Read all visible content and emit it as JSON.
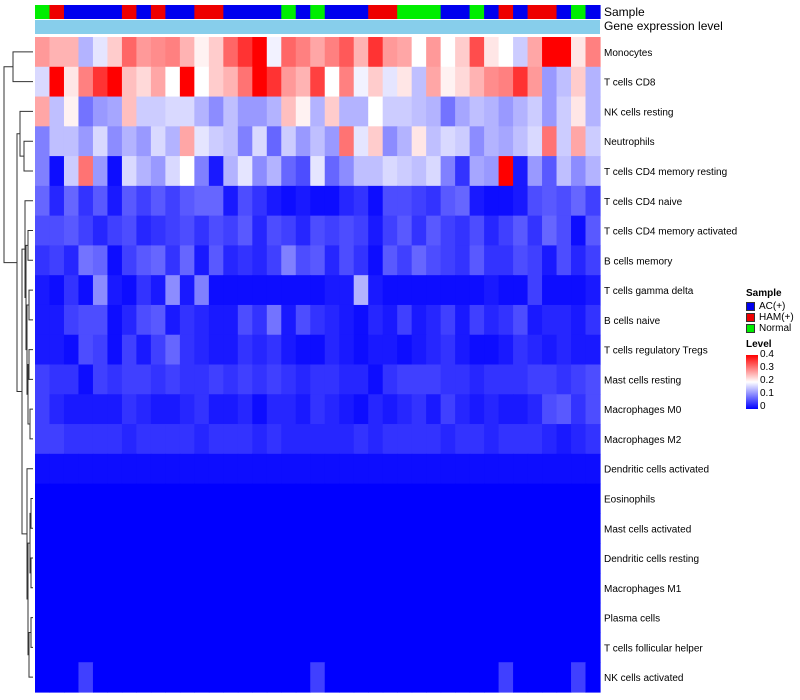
{
  "chart_data": {
    "type": "heatmap",
    "annotation_titles": {
      "sample": "Sample",
      "gene": "Gene expression level"
    },
    "sample_groups": [
      "Normal",
      "HAM(+)",
      "AC(+)",
      "AC(+)",
      "AC(+)",
      "AC(+)",
      "HAM(+)",
      "AC(+)",
      "HAM(+)",
      "AC(+)",
      "AC(+)",
      "HAM(+)",
      "HAM(+)",
      "AC(+)",
      "AC(+)",
      "AC(+)",
      "AC(+)",
      "Normal",
      "AC(+)",
      "Normal",
      "AC(+)",
      "AC(+)",
      "AC(+)",
      "HAM(+)",
      "HAM(+)",
      "Normal",
      "Normal",
      "Normal",
      "AC(+)",
      "AC(+)",
      "Normal",
      "AC(+)",
      "HAM(+)",
      "AC(+)",
      "HAM(+)",
      "HAM(+)",
      "AC(+)",
      "Normal",
      "AC(+)"
    ],
    "group_colors": {
      "AC(+)": "#0000ee",
      "HAM(+)": "#ee0000",
      "Normal": "#00ee00"
    },
    "gene_bar_color": "#87ceeb",
    "rows": [
      "Monocytes",
      "T cells CD8",
      "NK cells resting",
      "Neutrophils",
      "T cells CD4 memory resting",
      "T cells CD4 naive",
      "T cells CD4 memory activated",
      "B cells memory",
      "T cells gamma delta",
      "B cells naive",
      "T cells regulatory  Tregs",
      "Mast cells resting",
      "Macrophages M0",
      "Macrophages M2",
      "Dendritic cells activated",
      "Eosinophils",
      "Mast cells activated",
      "Dendritic cells resting",
      "Macrophages M1",
      "Plasma cells",
      "T cells follicular helper",
      "NK cells activated"
    ],
    "values": [
      [
        0.28,
        0.26,
        0.26,
        0.14,
        0.18,
        0.24,
        0.32,
        0.28,
        0.29,
        0.3,
        0.26,
        0.21,
        0.24,
        0.32,
        0.36,
        0.4,
        0.19,
        0.32,
        0.3,
        0.27,
        0.3,
        0.33,
        0.26,
        0.36,
        0.28,
        0.27,
        0.2,
        0.28,
        0.2,
        0.24,
        0.34,
        0.22,
        0.2,
        0.16,
        0.27,
        0.4,
        0.4,
        0.22,
        0.3
      ],
      [
        0.17,
        0.4,
        0.22,
        0.3,
        0.36,
        0.4,
        0.25,
        0.23,
        0.27,
        0.2,
        0.4,
        0.2,
        0.24,
        0.26,
        0.31,
        0.4,
        0.36,
        0.28,
        0.26,
        0.35,
        0.2,
        0.3,
        0.19,
        0.24,
        0.18,
        0.22,
        0.15,
        0.27,
        0.21,
        0.23,
        0.26,
        0.29,
        0.3,
        0.36,
        0.28,
        0.12,
        0.15,
        0.24,
        0.14
      ],
      [
        0.27,
        0.15,
        0.21,
        0.09,
        0.12,
        0.13,
        0.25,
        0.16,
        0.16,
        0.17,
        0.17,
        0.14,
        0.11,
        0.15,
        0.12,
        0.12,
        0.14,
        0.25,
        0.21,
        0.14,
        0.24,
        0.14,
        0.14,
        0.2,
        0.16,
        0.16,
        0.15,
        0.14,
        0.09,
        0.13,
        0.15,
        0.14,
        0.12,
        0.14,
        0.16,
        0.12,
        0.16,
        0.22,
        0.14
      ],
      [
        0.1,
        0.15,
        0.15,
        0.12,
        0.17,
        0.11,
        0.14,
        0.12,
        0.17,
        0.14,
        0.27,
        0.18,
        0.16,
        0.15,
        0.1,
        0.17,
        0.08,
        0.16,
        0.12,
        0.15,
        0.12,
        0.31,
        0.18,
        0.24,
        0.11,
        0.14,
        0.22,
        0.15,
        0.17,
        0.16,
        0.11,
        0.14,
        0.13,
        0.15,
        0.17,
        0.31,
        0.16,
        0.27,
        0.16
      ],
      [
        0.1,
        0.01,
        0.16,
        0.31,
        0.12,
        0.01,
        0.17,
        0.14,
        0.12,
        0.17,
        0.2,
        0.1,
        0.02,
        0.14,
        0.18,
        0.11,
        0.14,
        0.08,
        0.06,
        0.18,
        0.08,
        0.11,
        0.15,
        0.15,
        0.17,
        0.16,
        0.15,
        0.17,
        0.1,
        0.04,
        0.13,
        0.12,
        0.4,
        0.02,
        0.12,
        0.07,
        0.15,
        0.11,
        0.14
      ],
      [
        0.08,
        0.03,
        0.08,
        0.04,
        0.07,
        0.02,
        0.07,
        0.05,
        0.07,
        0.05,
        0.07,
        0.08,
        0.08,
        0.02,
        0.06,
        0.04,
        0.02,
        0.01,
        0.02,
        0.01,
        0.01,
        0.03,
        0.04,
        0.01,
        0.06,
        0.06,
        0.05,
        0.04,
        0.07,
        0.08,
        0.02,
        0.01,
        0.01,
        0.02,
        0.06,
        0.07,
        0.06,
        0.08,
        0.05
      ],
      [
        0.06,
        0.06,
        0.07,
        0.05,
        0.03,
        0.05,
        0.06,
        0.03,
        0.04,
        0.05,
        0.06,
        0.04,
        0.06,
        0.05,
        0.07,
        0.03,
        0.06,
        0.05,
        0.03,
        0.06,
        0.05,
        0.06,
        0.05,
        0.02,
        0.05,
        0.07,
        0.04,
        0.07,
        0.05,
        0.04,
        0.06,
        0.03,
        0.05,
        0.07,
        0.04,
        0.08,
        0.06,
        0.01,
        0.07
      ],
      [
        0.04,
        0.05,
        0.03,
        0.09,
        0.08,
        0.01,
        0.05,
        0.07,
        0.08,
        0.04,
        0.08,
        0.02,
        0.07,
        0.03,
        0.04,
        0.03,
        0.05,
        0.1,
        0.06,
        0.07,
        0.03,
        0.06,
        0.04,
        0.01,
        0.07,
        0.05,
        0.08,
        0.06,
        0.05,
        0.04,
        0.07,
        0.04,
        0.04,
        0.06,
        0.05,
        0.02,
        0.06,
        0.03,
        0.05
      ],
      [
        0.02,
        0.01,
        0.04,
        0.01,
        0.11,
        0.02,
        0.01,
        0.04,
        0.02,
        0.11,
        0.02,
        0.1,
        0.01,
        0.01,
        0.01,
        0.01,
        0.01,
        0.01,
        0.01,
        0.01,
        0.02,
        0.02,
        0.14,
        0.02,
        0.01,
        0.01,
        0.01,
        0.01,
        0.01,
        0.01,
        0.01,
        0.02,
        0.01,
        0.01,
        0.05,
        0.01,
        0.01,
        0.01,
        0.02
      ],
      [
        0.02,
        0.02,
        0.05,
        0.06,
        0.06,
        0.01,
        0.03,
        0.06,
        0.07,
        0.02,
        0.04,
        0.03,
        0.02,
        0.02,
        0.06,
        0.04,
        0.09,
        0.02,
        0.06,
        0.04,
        0.03,
        0.02,
        0.01,
        0.03,
        0.02,
        0.05,
        0.02,
        0.03,
        0.05,
        0.02,
        0.05,
        0.03,
        0.04,
        0.06,
        0.02,
        0.03,
        0.03,
        0.02,
        0.04
      ],
      [
        0.02,
        0.02,
        0.01,
        0.06,
        0.05,
        0.01,
        0.05,
        0.02,
        0.05,
        0.08,
        0.04,
        0.03,
        0.02,
        0.02,
        0.04,
        0.03,
        0.04,
        0.02,
        0.01,
        0.01,
        0.03,
        0.02,
        0.01,
        0.02,
        0.02,
        0.01,
        0.02,
        0.03,
        0.04,
        0.02,
        0.01,
        0.01,
        0.02,
        0.04,
        0.03,
        0.02,
        0.03,
        0.02,
        0.02
      ],
      [
        0.05,
        0.04,
        0.04,
        0.01,
        0.05,
        0.04,
        0.05,
        0.05,
        0.04,
        0.05,
        0.04,
        0.04,
        0.05,
        0.04,
        0.05,
        0.04,
        0.05,
        0.04,
        0.03,
        0.04,
        0.04,
        0.03,
        0.03,
        0.01,
        0.04,
        0.05,
        0.05,
        0.05,
        0.04,
        0.04,
        0.03,
        0.04,
        0.04,
        0.04,
        0.05,
        0.05,
        0.04,
        0.05,
        0.06
      ],
      [
        0.05,
        0.03,
        0.02,
        0.02,
        0.02,
        0.02,
        0.04,
        0.03,
        0.02,
        0.02,
        0.03,
        0.04,
        0.02,
        0.02,
        0.03,
        0.01,
        0.03,
        0.03,
        0.02,
        0.04,
        0.03,
        0.02,
        0.01,
        0.03,
        0.02,
        0.03,
        0.04,
        0.02,
        0.05,
        0.03,
        0.02,
        0.03,
        0.02,
        0.02,
        0.03,
        0.06,
        0.07,
        0.04,
        0.06
      ],
      [
        0.05,
        0.05,
        0.04,
        0.04,
        0.04,
        0.04,
        0.03,
        0.04,
        0.04,
        0.04,
        0.04,
        0.03,
        0.04,
        0.04,
        0.04,
        0.03,
        0.04,
        0.03,
        0.03,
        0.03,
        0.03,
        0.03,
        0.04,
        0.03,
        0.04,
        0.04,
        0.04,
        0.04,
        0.03,
        0.04,
        0.04,
        0.03,
        0.04,
        0.04,
        0.04,
        0.03,
        0.02,
        0.03,
        0.04
      ],
      [
        0.01,
        0.01,
        0.01,
        0.01,
        0.01,
        0.01,
        0.01,
        0.01,
        0.01,
        0.01,
        0.01,
        0.01,
        0.01,
        0.01,
        0.01,
        0.01,
        0.01,
        0.01,
        0.01,
        0.01,
        0.01,
        0.01,
        0.01,
        0.01,
        0.01,
        0.01,
        0.01,
        0.01,
        0.01,
        0.01,
        0.01,
        0.01,
        0.01,
        0.01,
        0.01,
        0.01,
        0.01,
        0.01,
        0.01
      ],
      [
        0,
        0,
        0,
        0,
        0,
        0,
        0,
        0,
        0,
        0,
        0,
        0,
        0,
        0,
        0,
        0,
        0,
        0,
        0,
        0,
        0,
        0,
        0,
        0,
        0,
        0,
        0,
        0,
        0,
        0,
        0,
        0,
        0,
        0,
        0,
        0,
        0,
        0,
        0
      ],
      [
        0,
        0,
        0,
        0,
        0,
        0,
        0,
        0,
        0,
        0,
        0,
        0,
        0,
        0,
        0,
        0,
        0,
        0,
        0,
        0,
        0,
        0,
        0,
        0,
        0,
        0,
        0,
        0,
        0,
        0,
        0,
        0,
        0,
        0,
        0,
        0,
        0,
        0,
        0
      ],
      [
        0,
        0,
        0,
        0,
        0,
        0,
        0,
        0,
        0,
        0,
        0,
        0,
        0,
        0,
        0,
        0,
        0,
        0,
        0,
        0,
        0,
        0,
        0,
        0,
        0,
        0,
        0,
        0,
        0,
        0,
        0,
        0,
        0,
        0,
        0,
        0,
        0,
        0,
        0
      ],
      [
        0,
        0,
        0,
        0,
        0,
        0,
        0,
        0,
        0,
        0,
        0,
        0,
        0,
        0,
        0,
        0,
        0,
        0,
        0,
        0,
        0,
        0,
        0,
        0,
        0,
        0,
        0,
        0,
        0,
        0,
        0,
        0,
        0,
        0,
        0,
        0,
        0,
        0,
        0
      ],
      [
        0,
        0,
        0,
        0,
        0,
        0,
        0,
        0,
        0,
        0,
        0,
        0,
        0,
        0,
        0,
        0,
        0,
        0,
        0,
        0,
        0,
        0,
        0,
        0,
        0,
        0,
        0,
        0,
        0,
        0,
        0,
        0,
        0,
        0,
        0,
        0,
        0,
        0,
        0
      ],
      [
        0,
        0,
        0,
        0,
        0,
        0,
        0,
        0,
        0,
        0,
        0,
        0,
        0,
        0,
        0,
        0,
        0,
        0,
        0,
        0,
        0,
        0,
        0,
        0,
        0,
        0,
        0,
        0,
        0,
        0,
        0,
        0,
        0,
        0,
        0,
        0,
        0,
        0,
        0
      ],
      [
        0,
        0,
        0,
        0.05,
        0,
        0,
        0,
        0,
        0,
        0,
        0,
        0,
        0,
        0,
        0,
        0,
        0,
        0,
        0,
        0.05,
        0,
        0,
        0,
        0,
        0,
        0,
        0,
        0,
        0,
        0,
        0,
        0,
        0.05,
        0,
        0,
        0,
        0,
        0.05,
        0
      ]
    ],
    "color_scale": {
      "low": "#0000ff",
      "mid": "#ffffff",
      "high": "#ff0000",
      "min": 0,
      "max": 0.4
    },
    "legend": {
      "sample_title": "Sample",
      "sample_items": [
        {
          "label": "AC(+)",
          "color": "#0000ee"
        },
        {
          "label": "HAM(+)",
          "color": "#ee0000"
        },
        {
          "label": "Normal",
          "color": "#00ee00"
        }
      ],
      "level_title": "Level",
      "level_ticks": [
        "0.4",
        "0.3",
        "0.2",
        "0.1",
        "0"
      ],
      "placement": "right"
    }
  }
}
